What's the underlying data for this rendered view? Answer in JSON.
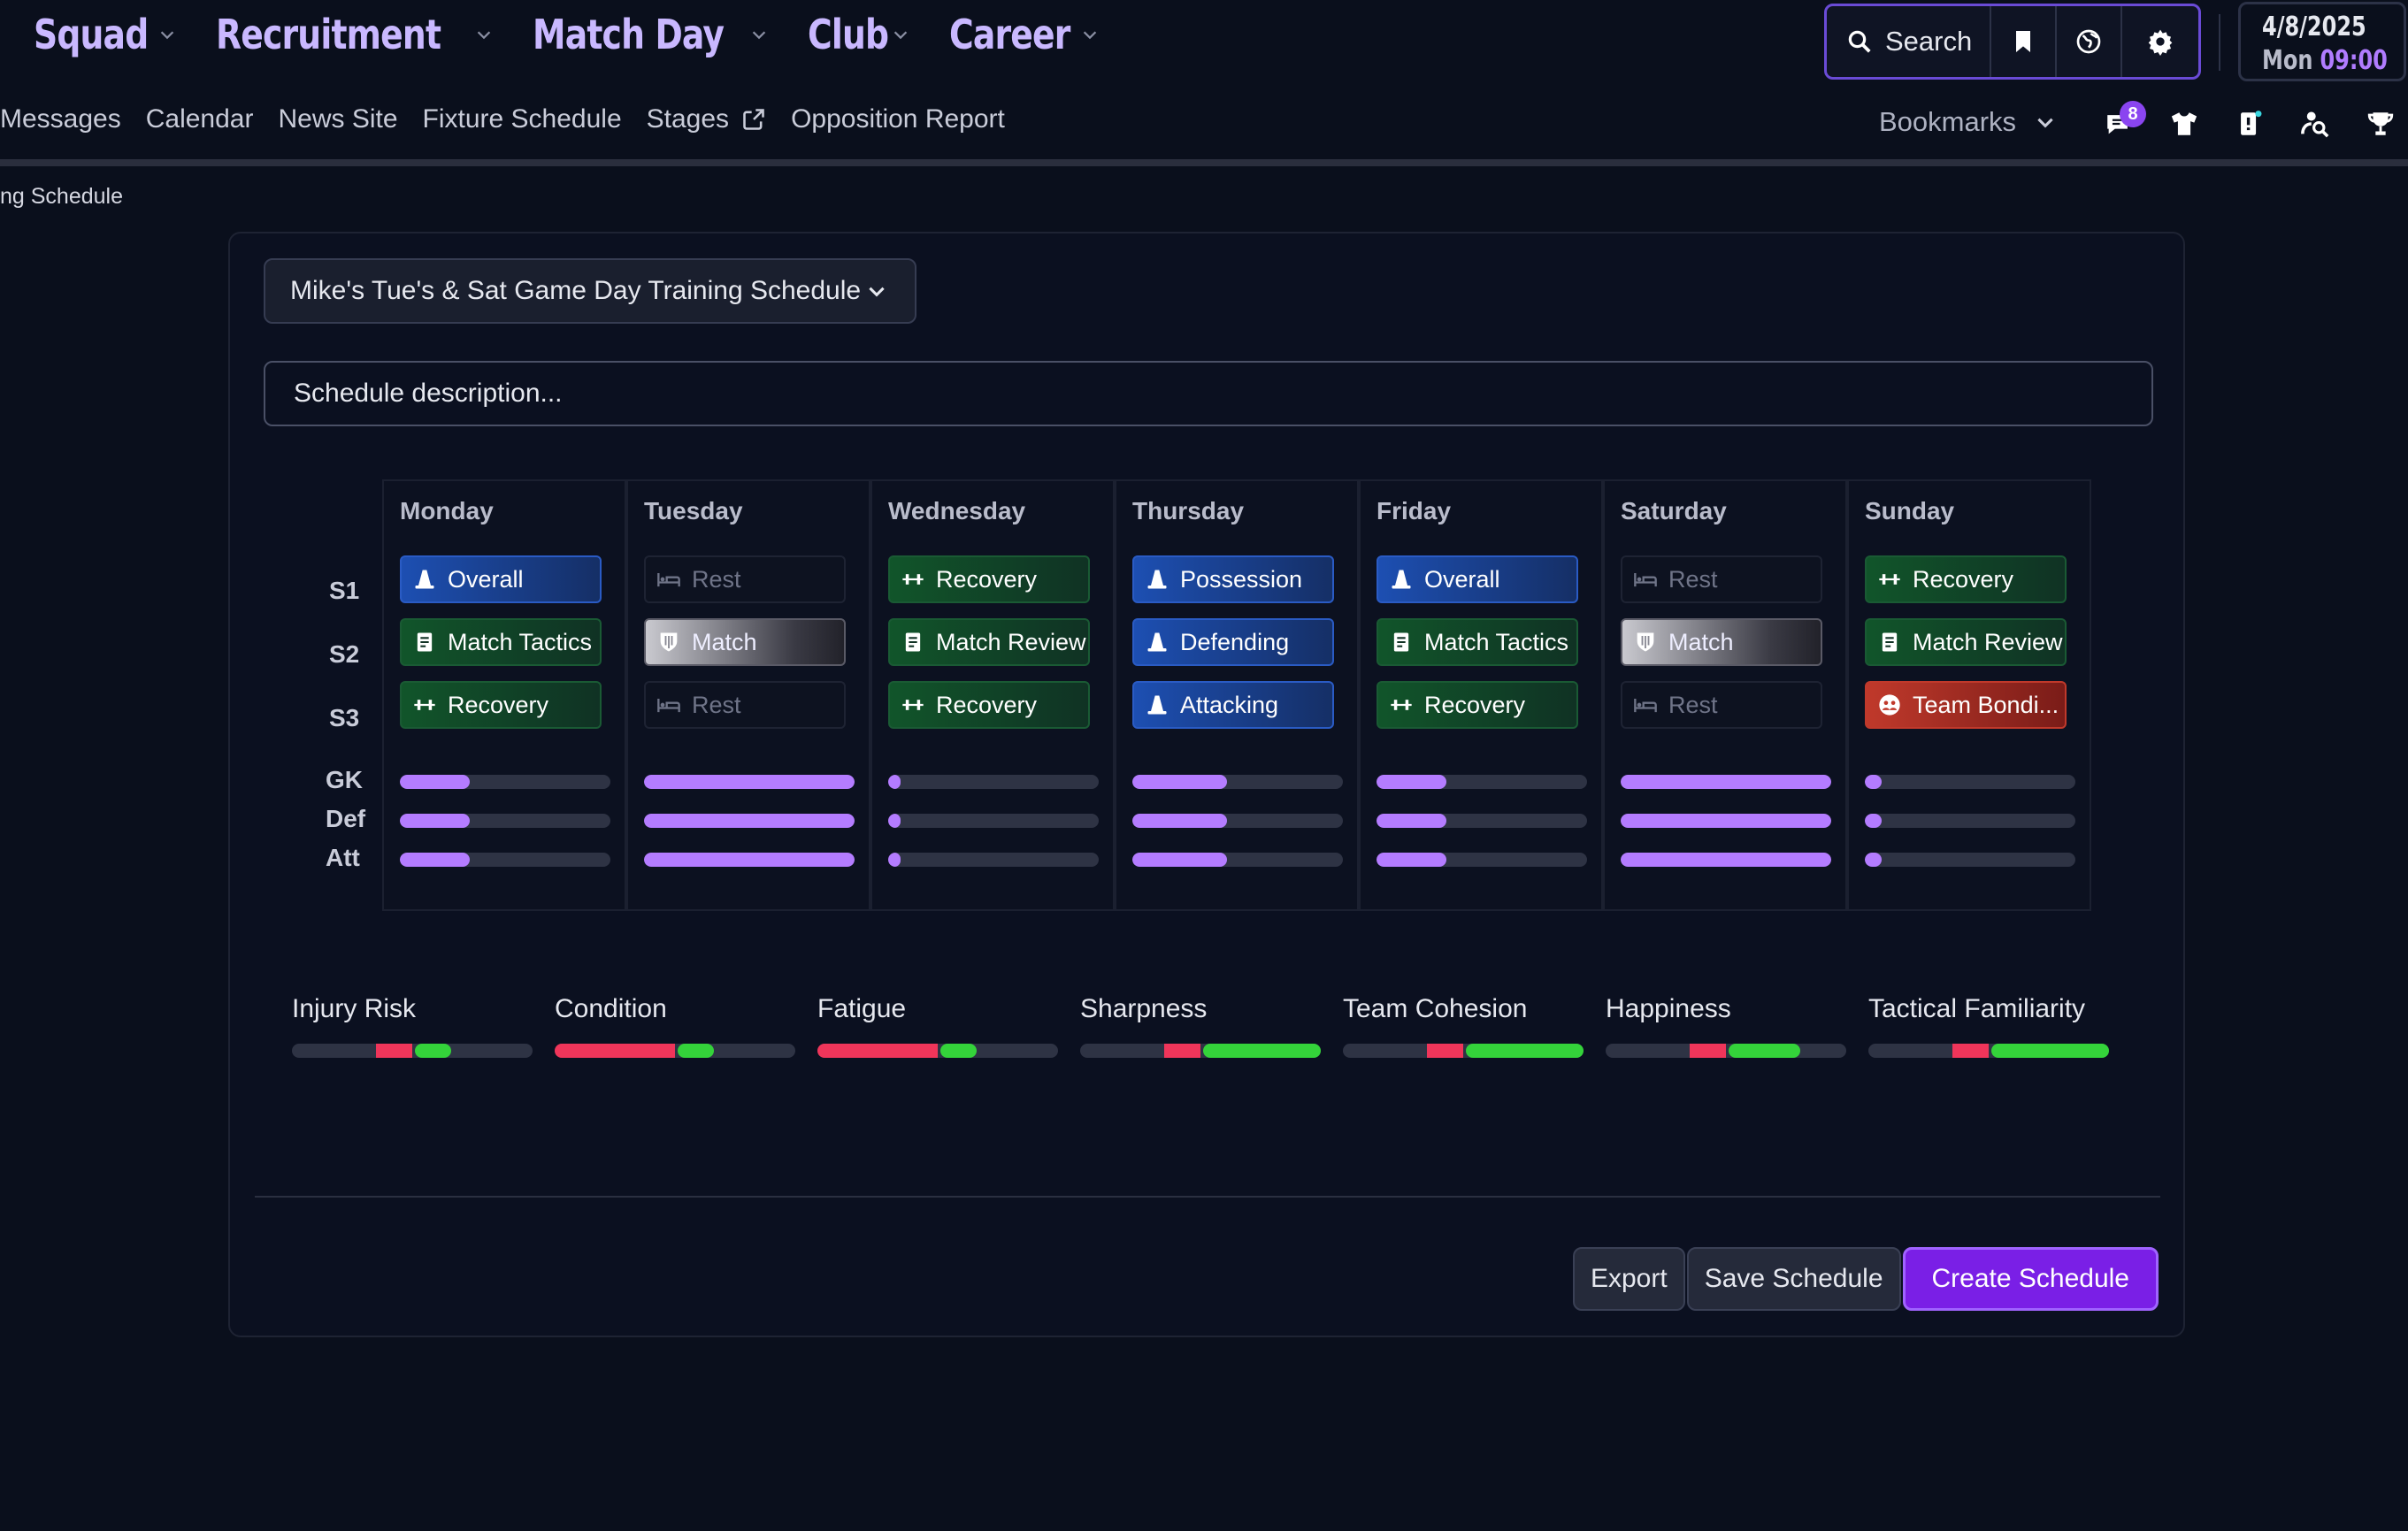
{
  "nav": {
    "menus": [
      "Squad",
      "Recruitment",
      "Match Day",
      "Club",
      "Career"
    ],
    "subnav": [
      "Messages",
      "Calendar",
      "News Site",
      "Fixture Schedule",
      "Stages",
      "Opposition Report"
    ],
    "search_label": "Search",
    "bookmarks_label": "Bookmarks",
    "messages_badge": "8",
    "date": "4/8/2025",
    "day": "Mon",
    "time": "09:00"
  },
  "breadcrumb": "ng Schedule",
  "schedule": {
    "selected": "Mike's Tue's & Sat Game Day Training Schedule",
    "description_placeholder": "Schedule description..."
  },
  "row_labels": {
    "s1": "S1",
    "s2": "S2",
    "s3": "S3",
    "gk": "GK",
    "def": "Def",
    "att": "Att"
  },
  "days": [
    {
      "name": "Monday",
      "sessions": [
        {
          "label": "Overall",
          "style": "blue",
          "icon": "cone-icon"
        },
        {
          "label": "Match Tactics",
          "style": "green",
          "icon": "document-icon"
        },
        {
          "label": "Recovery",
          "style": "green",
          "icon": "dumbbell-icon"
        }
      ],
      "load": {
        "gk": 0.33,
        "def": 0.33,
        "att": 0.33
      }
    },
    {
      "name": "Tuesday",
      "sessions": [
        {
          "label": "Rest",
          "style": "rest",
          "icon": "bed-icon"
        },
        {
          "label": "Match",
          "style": "grey",
          "icon": "shield-icon"
        },
        {
          "label": "Rest",
          "style": "rest",
          "icon": "bed-icon"
        }
      ],
      "load": {
        "gk": 1.0,
        "def": 1.0,
        "att": 1.0
      }
    },
    {
      "name": "Wednesday",
      "sessions": [
        {
          "label": "Recovery",
          "style": "green",
          "icon": "dumbbell-icon"
        },
        {
          "label": "Match Review",
          "style": "green",
          "icon": "document-icon"
        },
        {
          "label": "Recovery",
          "style": "green",
          "icon": "dumbbell-icon"
        }
      ],
      "load": {
        "gk": 0.05,
        "def": 0.05,
        "att": 0.05
      }
    },
    {
      "name": "Thursday",
      "sessions": [
        {
          "label": "Possession",
          "style": "blue",
          "icon": "cone-icon"
        },
        {
          "label": "Defending",
          "style": "blue",
          "icon": "cone-icon"
        },
        {
          "label": "Attacking",
          "style": "blue",
          "icon": "cone-icon"
        }
      ],
      "load": {
        "gk": 0.45,
        "def": 0.45,
        "att": 0.45
      }
    },
    {
      "name": "Friday",
      "sessions": [
        {
          "label": "Overall",
          "style": "blue",
          "icon": "cone-icon"
        },
        {
          "label": "Match Tactics",
          "style": "green",
          "icon": "document-icon"
        },
        {
          "label": "Recovery",
          "style": "green",
          "icon": "dumbbell-icon"
        }
      ],
      "load": {
        "gk": 0.33,
        "def": 0.33,
        "att": 0.33
      }
    },
    {
      "name": "Saturday",
      "sessions": [
        {
          "label": "Rest",
          "style": "rest",
          "icon": "bed-icon"
        },
        {
          "label": "Match",
          "style": "grey",
          "icon": "shield-icon"
        },
        {
          "label": "Rest",
          "style": "rest",
          "icon": "bed-icon"
        }
      ],
      "load": {
        "gk": 1.0,
        "def": 1.0,
        "att": 1.0
      }
    },
    {
      "name": "Sunday",
      "sessions": [
        {
          "label": "Recovery",
          "style": "green",
          "icon": "dumbbell-icon"
        },
        {
          "label": "Match Review",
          "style": "green",
          "icon": "document-icon"
        },
        {
          "label": "Team Bondi...",
          "style": "red",
          "icon": "people-icon"
        }
      ],
      "load": {
        "gk": 0.08,
        "def": 0.08,
        "att": 0.08
      }
    }
  ],
  "metrics": [
    {
      "label": "Injury Risk",
      "neg": 0.15,
      "pos": 0.15
    },
    {
      "label": "Condition",
      "neg": 0.5,
      "pos": 0.15
    },
    {
      "label": "Fatigue",
      "neg": 0.5,
      "pos": 0.15
    },
    {
      "label": "Sharpness",
      "neg": 0.15,
      "pos": 0.5
    },
    {
      "label": "Team Cohesion",
      "neg": 0.15,
      "pos": 0.5
    },
    {
      "label": "Happiness",
      "neg": 0.15,
      "pos": 0.3
    },
    {
      "label": "Tactical Familiarity",
      "neg": 0.15,
      "pos": 0.5
    }
  ],
  "buttons": {
    "export": "Export",
    "save": "Save Schedule",
    "create": "Create Schedule"
  },
  "colors": {
    "accent": "#b47cff",
    "primary": "#7a1fe6",
    "positive": "#34d33a",
    "negative": "#f0355a"
  }
}
